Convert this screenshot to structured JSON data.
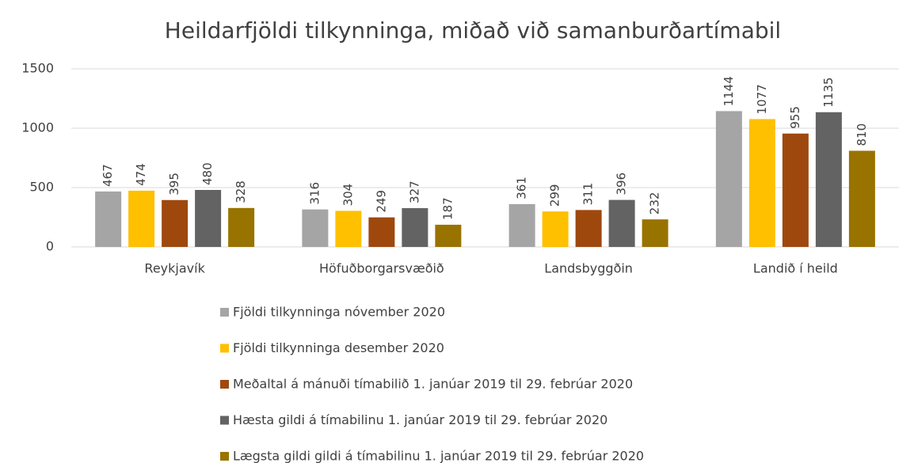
{
  "chart_data": {
    "type": "bar",
    "title": "Heildarfjöldi tilkynninga, miðað við samanburðartímabil",
    "categories": [
      "Reykjavík",
      "Höfuðborgarsvæðið",
      "Landsbyggðin",
      "Landið í heild"
    ],
    "series": [
      {
        "name": "Fjöldi tilkynninga nóvember 2020",
        "color": "#a5a5a5",
        "values": [
          467,
          316,
          361,
          1144
        ]
      },
      {
        "name": "Fjöldi tilkynninga desember 2020",
        "color": "#ffc000",
        "values": [
          474,
          304,
          299,
          1077
        ]
      },
      {
        "name": "Meðaltal á mánuði tímabilið 1. janúar 2019 til 29. febrúar 2020",
        "color": "#9e480e",
        "values": [
          395,
          249,
          311,
          955
        ]
      },
      {
        "name": "Hæsta gildi á tímabilinu 1. janúar 2019 til 29. febrúar 2020",
        "color": "#636363",
        "values": [
          480,
          327,
          396,
          1135
        ]
      },
      {
        "name": "Lægsta gildi gildi á tímabilinu 1. janúar 2019 til 29. febrúar 2020",
        "color": "#997300",
        "values": [
          328,
          187,
          232,
          810
        ]
      }
    ],
    "ylim": [
      0,
      1500
    ],
    "yticks": [
      0,
      500,
      1000,
      1500
    ],
    "grid": true,
    "legend": "bottom"
  }
}
